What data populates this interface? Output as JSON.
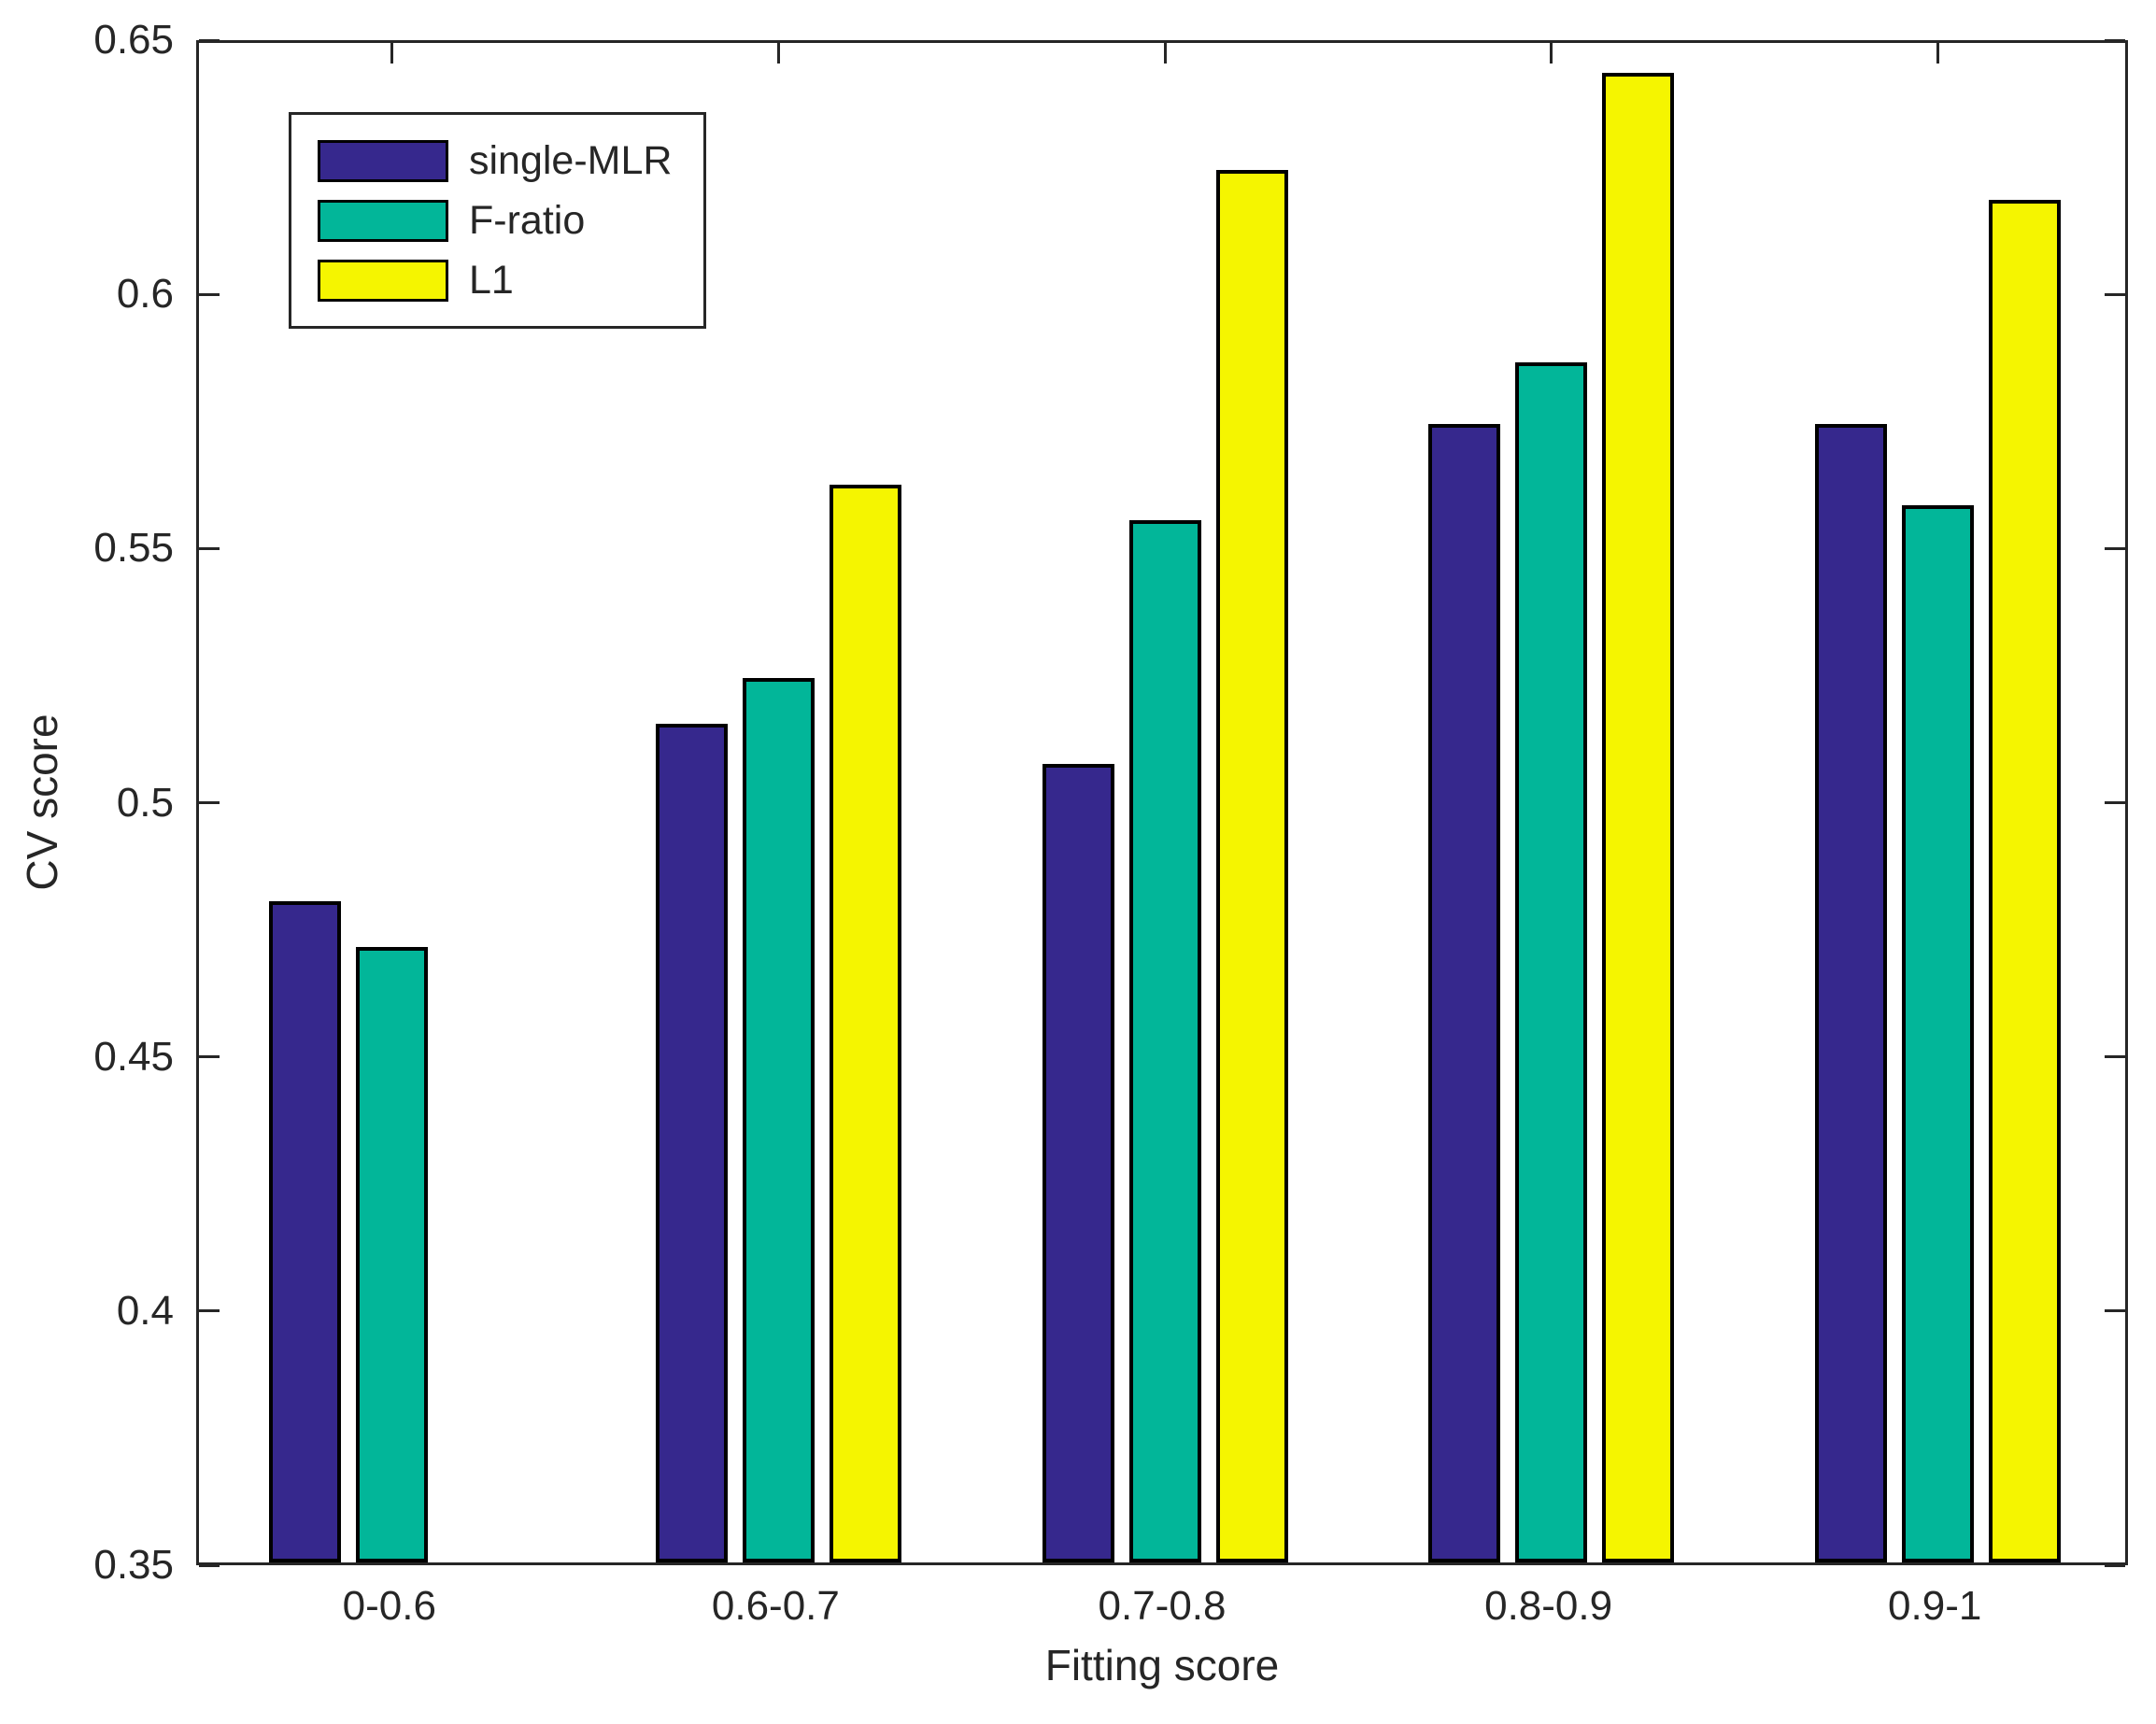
{
  "figure": {
    "background": "#ffffff",
    "text_color": "#262626",
    "axis_color": "#262626",
    "bar_edge_color": "#000000"
  },
  "chart_data": {
    "type": "bar",
    "title": "",
    "xlabel": "Fitting score",
    "ylabel": "CV score",
    "categories": [
      "0-0.6",
      "0.6-0.7",
      "0.7-0.8",
      "0.8-0.9",
      "0.9-1"
    ],
    "series": [
      {
        "name": "single-MLR",
        "color": "#36288D",
        "values": [
          0.48,
          0.515,
          0.507,
          0.574,
          0.574
        ]
      },
      {
        "name": "F-ratio",
        "color": "#02B699",
        "values": [
          0.471,
          0.524,
          0.555,
          0.586,
          0.558
        ]
      },
      {
        "name": "L1",
        "color": "#F5F500",
        "values": [
          null,
          0.562,
          0.624,
          0.643,
          0.618
        ]
      }
    ],
    "ylim": [
      0.35,
      0.65
    ],
    "ytick_step": 0.05,
    "ytick_labels": [
      "0.35",
      "0.4",
      "0.45",
      "0.5",
      "0.55",
      "0.6",
      "0.65"
    ],
    "legend_position": "top-left",
    "grid": false
  }
}
